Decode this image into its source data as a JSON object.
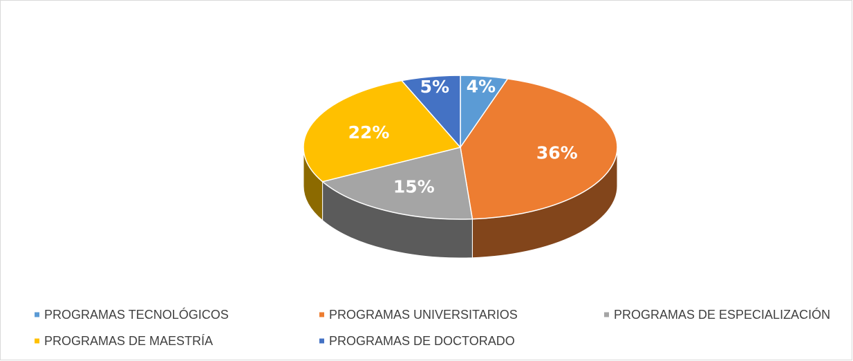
{
  "chart_data": {
    "type": "pie",
    "three_d": true,
    "categories": [
      "PROGRAMAS TECNOLÓGICOS",
      "PROGRAMAS UNIVERSITARIOS",
      "PROGRAMAS DE ESPECIALIZACIÓN",
      "PROGRAMAS DE MAESTRÍA",
      "PROGRAMAS DE DOCTORADO"
    ],
    "values": [
      4,
      36,
      15,
      22,
      5
    ],
    "value_labels": [
      "4%",
      "36%",
      "15%",
      "22%",
      "5%"
    ],
    "colors": [
      "#5b9bd5",
      "#ed7d31",
      "#a5a5a5",
      "#ffc000",
      "#4472c4"
    ],
    "legend": "bottom"
  }
}
